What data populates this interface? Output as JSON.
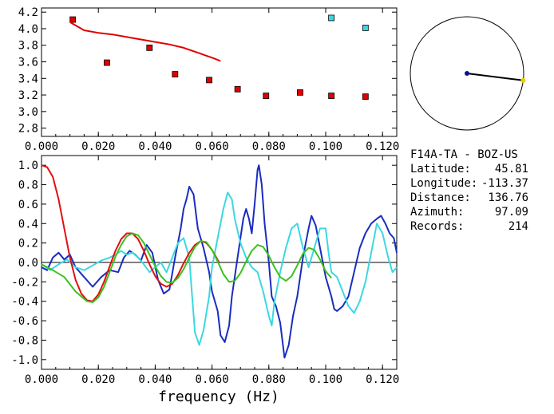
{
  "chart_data": [
    {
      "type": "scatter",
      "name": "dispersion",
      "xlim": [
        0.0,
        0.125
      ],
      "ylim": [
        2.7,
        4.25
      ],
      "x_ticks": [
        0.0,
        0.02,
        0.04,
        0.06,
        0.08,
        0.1,
        0.12
      ],
      "x_tick_labels": [
        "0.000",
        "0.020",
        "0.040",
        "0.060",
        "0.080",
        "0.100",
        "0.120"
      ],
      "y_ticks": [
        2.8,
        3.0,
        3.2,
        3.4,
        3.6,
        3.8,
        4.0,
        4.2
      ],
      "y_tick_labels": [
        "2.8",
        "3.0",
        "3.2",
        "3.4",
        "3.6",
        "3.8",
        "4.0",
        "4.2"
      ],
      "grid": false,
      "series": [
        {
          "color": "#e00000",
          "kind": "markers",
          "points": [
            [
              0.011,
              4.11
            ],
            [
              0.023,
              3.59
            ],
            [
              0.038,
              3.77
            ],
            [
              0.047,
              3.45
            ],
            [
              0.059,
              3.38
            ],
            [
              0.069,
              3.27
            ],
            [
              0.079,
              3.19
            ],
            [
              0.091,
              3.23
            ],
            [
              0.102,
              3.19
            ],
            [
              0.114,
              3.18
            ]
          ]
        },
        {
          "color": "#3cd8e0",
          "kind": "markers",
          "points": [
            [
              0.102,
              4.13
            ],
            [
              0.114,
              4.01
            ]
          ]
        },
        {
          "color": "#e00000",
          "kind": "line",
          "points": [
            [
              0.01,
              4.08
            ],
            [
              0.015,
              3.98
            ],
            [
              0.02,
              3.95
            ],
            [
              0.025,
              3.93
            ],
            [
              0.03,
              3.9
            ],
            [
              0.035,
              3.87
            ],
            [
              0.04,
              3.84
            ],
            [
              0.045,
              3.81
            ],
            [
              0.05,
              3.77
            ],
            [
              0.055,
              3.71
            ],
            [
              0.06,
              3.65
            ],
            [
              0.063,
              3.61
            ]
          ]
        }
      ]
    },
    {
      "type": "line",
      "name": "waveforms",
      "xlim": [
        0.0,
        0.125
      ],
      "ylim": [
        -1.1,
        1.1
      ],
      "xlabel": "frequency (Hz)",
      "x_ticks": [
        0.0,
        0.02,
        0.04,
        0.06,
        0.08,
        0.1,
        0.12
      ],
      "x_tick_labels": [
        "0.000",
        "0.020",
        "0.040",
        "0.060",
        "0.080",
        "0.100",
        "0.120"
      ],
      "y_ticks": [
        1.0,
        0.8,
        0.6,
        0.4,
        0.2,
        0.0,
        -0.2,
        -0.4,
        -0.6,
        -0.8,
        -1.0
      ],
      "y_tick_labels": [
        "1.0",
        "0.8",
        "0.6",
        "0.4",
        "0.2",
        "0.0",
        "-0.2",
        "-0.4",
        "-0.6",
        "-0.8",
        "-1.0"
      ],
      "zero_line": true,
      "grid": false,
      "series": [
        {
          "color": "#1a2cc0",
          "points": [
            [
              0.0,
              -0.05
            ],
            [
              0.002,
              -0.08
            ],
            [
              0.004,
              0.05
            ],
            [
              0.006,
              0.1
            ],
            [
              0.008,
              0.03
            ],
            [
              0.01,
              0.08
            ],
            [
              0.012,
              -0.05
            ],
            [
              0.015,
              -0.15
            ],
            [
              0.018,
              -0.25
            ],
            [
              0.021,
              -0.15
            ],
            [
              0.024,
              -0.08
            ],
            [
              0.027,
              -0.1
            ],
            [
              0.029,
              0.05
            ],
            [
              0.031,
              0.12
            ],
            [
              0.033,
              0.08
            ],
            [
              0.035,
              0.02
            ],
            [
              0.037,
              0.18
            ],
            [
              0.039,
              0.1
            ],
            [
              0.041,
              -0.18
            ],
            [
              0.043,
              -0.32
            ],
            [
              0.045,
              -0.28
            ],
            [
              0.047,
              0.05
            ],
            [
              0.049,
              0.35
            ],
            [
              0.05,
              0.55
            ],
            [
              0.051,
              0.65
            ],
            [
              0.052,
              0.78
            ],
            [
              0.0535,
              0.7
            ],
            [
              0.055,
              0.35
            ],
            [
              0.057,
              0.15
            ],
            [
              0.059,
              -0.1
            ],
            [
              0.06,
              -0.3
            ],
            [
              0.062,
              -0.5
            ],
            [
              0.063,
              -0.75
            ],
            [
              0.0645,
              -0.82
            ],
            [
              0.066,
              -0.65
            ],
            [
              0.067,
              -0.35
            ],
            [
              0.069,
              0.05
            ],
            [
              0.071,
              0.45
            ],
            [
              0.072,
              0.55
            ],
            [
              0.073,
              0.45
            ],
            [
              0.074,
              0.3
            ],
            [
              0.075,
              0.6
            ],
            [
              0.076,
              0.95
            ],
            [
              0.0765,
              1.0
            ],
            [
              0.0775,
              0.8
            ],
            [
              0.0785,
              0.4
            ],
            [
              0.08,
              0.0
            ],
            [
              0.081,
              -0.35
            ],
            [
              0.0825,
              -0.45
            ],
            [
              0.084,
              -0.62
            ],
            [
              0.0855,
              -0.98
            ],
            [
              0.087,
              -0.85
            ],
            [
              0.0885,
              -0.55
            ],
            [
              0.09,
              -0.35
            ],
            [
              0.092,
              0.05
            ],
            [
              0.094,
              0.35
            ],
            [
              0.095,
              0.48
            ],
            [
              0.0965,
              0.38
            ],
            [
              0.098,
              0.15
            ],
            [
              0.1,
              -0.15
            ],
            [
              0.102,
              -0.35
            ],
            [
              0.103,
              -0.48
            ],
            [
              0.104,
              -0.5
            ],
            [
              0.106,
              -0.45
            ],
            [
              0.108,
              -0.35
            ],
            [
              0.11,
              -0.1
            ],
            [
              0.112,
              0.15
            ],
            [
              0.114,
              0.3
            ],
            [
              0.116,
              0.4
            ],
            [
              0.118,
              0.45
            ],
            [
              0.1195,
              0.48
            ],
            [
              0.121,
              0.4
            ],
            [
              0.1225,
              0.3
            ],
            [
              0.124,
              0.25
            ],
            [
              0.125,
              0.1
            ]
          ]
        },
        {
          "color": "#3cd8e0",
          "points": [
            [
              0.0,
              -0.02
            ],
            [
              0.003,
              -0.08
            ],
            [
              0.006,
              -0.02
            ],
            [
              0.009,
              0.03
            ],
            [
              0.012,
              -0.05
            ],
            [
              0.015,
              -0.08
            ],
            [
              0.018,
              -0.03
            ],
            [
              0.021,
              0.02
            ],
            [
              0.024,
              0.05
            ],
            [
              0.026,
              0.08
            ],
            [
              0.028,
              0.12
            ],
            [
              0.03,
              0.08
            ],
            [
              0.032,
              0.1
            ],
            [
              0.034,
              0.05
            ],
            [
              0.036,
              -0.02
            ],
            [
              0.038,
              -0.1
            ],
            [
              0.04,
              -0.05
            ],
            [
              0.042,
              0.0
            ],
            [
              0.044,
              -0.1
            ],
            [
              0.046,
              0.05
            ],
            [
              0.048,
              0.2
            ],
            [
              0.05,
              0.25
            ],
            [
              0.052,
              0.05
            ],
            [
              0.053,
              -0.35
            ],
            [
              0.054,
              -0.72
            ],
            [
              0.0555,
              -0.85
            ],
            [
              0.057,
              -0.7
            ],
            [
              0.059,
              -0.35
            ],
            [
              0.06,
              -0.05
            ],
            [
              0.062,
              0.25
            ],
            [
              0.064,
              0.55
            ],
            [
              0.0655,
              0.72
            ],
            [
              0.067,
              0.65
            ],
            [
              0.068,
              0.45
            ],
            [
              0.07,
              0.2
            ],
            [
              0.072,
              0.05
            ],
            [
              0.074,
              -0.05
            ],
            [
              0.076,
              -0.1
            ],
            [
              0.078,
              -0.3
            ],
            [
              0.08,
              -0.55
            ],
            [
              0.081,
              -0.65
            ],
            [
              0.082,
              -0.4
            ],
            [
              0.084,
              -0.1
            ],
            [
              0.086,
              0.15
            ],
            [
              0.088,
              0.35
            ],
            [
              0.09,
              0.4
            ],
            [
              0.092,
              0.15
            ],
            [
              0.094,
              -0.05
            ],
            [
              0.096,
              0.15
            ],
            [
              0.098,
              0.35
            ],
            [
              0.1,
              0.35
            ],
            [
              0.101,
              0.1
            ],
            [
              0.102,
              -0.1
            ],
            [
              0.104,
              -0.15
            ],
            [
              0.106,
              -0.3
            ],
            [
              0.108,
              -0.45
            ],
            [
              0.11,
              -0.52
            ],
            [
              0.112,
              -0.4
            ],
            [
              0.114,
              -0.2
            ],
            [
              0.116,
              0.1
            ],
            [
              0.118,
              0.4
            ],
            [
              0.12,
              0.3
            ],
            [
              0.122,
              0.05
            ],
            [
              0.1235,
              -0.1
            ],
            [
              0.125,
              -0.05
            ]
          ]
        },
        {
          "color": "#e01010",
          "points": [
            [
              0.0,
              1.0
            ],
            [
              0.002,
              0.98
            ],
            [
              0.004,
              0.88
            ],
            [
              0.006,
              0.65
            ],
            [
              0.008,
              0.35
            ],
            [
              0.01,
              0.05
            ],
            [
              0.012,
              -0.18
            ],
            [
              0.014,
              -0.32
            ],
            [
              0.016,
              -0.39
            ],
            [
              0.018,
              -0.4
            ],
            [
              0.02,
              -0.33
            ],
            [
              0.022,
              -0.2
            ],
            [
              0.024,
              -0.04
            ],
            [
              0.026,
              0.12
            ],
            [
              0.028,
              0.24
            ],
            [
              0.03,
              0.3
            ],
            [
              0.032,
              0.3
            ],
            [
              0.034,
              0.24
            ],
            [
              0.036,
              0.12
            ],
            [
              0.038,
              -0.02
            ],
            [
              0.04,
              -0.14
            ],
            [
              0.042,
              -0.22
            ],
            [
              0.044,
              -0.25
            ],
            [
              0.046,
              -0.22
            ],
            [
              0.048,
              -0.13
            ],
            [
              0.05,
              -0.01
            ],
            [
              0.052,
              0.1
            ],
            [
              0.054,
              0.18
            ],
            [
              0.056,
              0.22
            ],
            [
              0.058,
              0.2
            ],
            [
              0.06,
              0.13
            ],
            [
              0.0625,
              0.0
            ]
          ]
        },
        {
          "color": "#3cc020",
          "points": [
            [
              0.0,
              -0.02
            ],
            [
              0.004,
              -0.08
            ],
            [
              0.008,
              -0.15
            ],
            [
              0.012,
              -0.3
            ],
            [
              0.016,
              -0.4
            ],
            [
              0.018,
              -0.41
            ],
            [
              0.02,
              -0.36
            ],
            [
              0.022,
              -0.25
            ],
            [
              0.024,
              -0.1
            ],
            [
              0.026,
              0.06
            ],
            [
              0.028,
              0.18
            ],
            [
              0.03,
              0.27
            ],
            [
              0.032,
              0.3
            ],
            [
              0.034,
              0.28
            ],
            [
              0.036,
              0.2
            ],
            [
              0.038,
              0.08
            ],
            [
              0.04,
              -0.04
            ],
            [
              0.042,
              -0.14
            ],
            [
              0.044,
              -0.2
            ],
            [
              0.046,
              -0.21
            ],
            [
              0.048,
              -0.16
            ],
            [
              0.05,
              -0.07
            ],
            [
              0.052,
              0.05
            ],
            [
              0.054,
              0.16
            ],
            [
              0.056,
              0.22
            ],
            [
              0.058,
              0.21
            ],
            [
              0.06,
              0.13
            ],
            [
              0.062,
              0.01
            ],
            [
              0.064,
              -0.12
            ],
            [
              0.066,
              -0.2
            ],
            [
              0.068,
              -0.19
            ],
            [
              0.07,
              -0.11
            ],
            [
              0.072,
              0.01
            ],
            [
              0.074,
              0.12
            ],
            [
              0.076,
              0.18
            ],
            [
              0.078,
              0.16
            ],
            [
              0.08,
              0.07
            ],
            [
              0.082,
              -0.05
            ],
            [
              0.084,
              -0.15
            ],
            [
              0.086,
              -0.19
            ],
            [
              0.088,
              -0.14
            ],
            [
              0.09,
              -0.03
            ],
            [
              0.092,
              0.09
            ],
            [
              0.094,
              0.15
            ],
            [
              0.096,
              0.13
            ],
            [
              0.098,
              0.03
            ],
            [
              0.1,
              -0.09
            ],
            [
              0.102,
              -0.16
            ]
          ]
        }
      ]
    }
  ],
  "azimuth_plot": {
    "azimuth_deg": 97.09,
    "center_color": "#101090",
    "line_color": "#000000",
    "tip_color": "#e8d000"
  },
  "station_info": {
    "title": "F14A-TA - BOZ-US",
    "lines": [
      {
        "label": "Latitude:",
        "value": "45.81"
      },
      {
        "label": "Longitude:",
        "value": "-113.37"
      },
      {
        "label": "Distance:",
        "value": "136.76"
      },
      {
        "label": "Azimuth:",
        "value": "97.09"
      },
      {
        "label": "Records:",
        "value": "214"
      }
    ]
  }
}
